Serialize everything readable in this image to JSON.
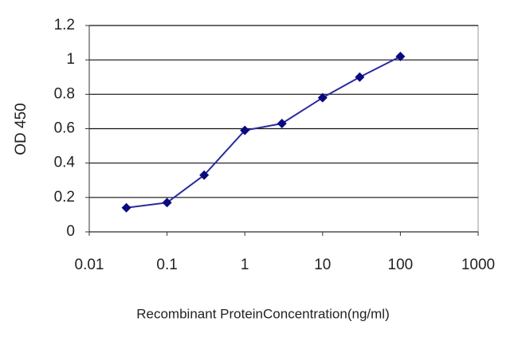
{
  "chart_data": {
    "type": "line",
    "x_label": "Recombinant ProteinConcentration(ng/ml)",
    "y_label": "OD 450",
    "x": [
      0.03,
      0.1,
      0.3,
      1,
      3,
      10,
      30,
      100
    ],
    "values": [
      0.14,
      0.17,
      0.33,
      0.59,
      0.63,
      0.78,
      0.9,
      1.02
    ],
    "color": "#2a2aa0",
    "marker_color": "#0a0a80",
    "xscale": "log",
    "xlim": [
      0.01,
      1000
    ],
    "xticks": [
      0.01,
      0.1,
      1,
      10,
      100,
      1000
    ],
    "ylim": [
      0,
      1.2
    ],
    "yticks": [
      0,
      0.2,
      0.4,
      0.6,
      0.8,
      1,
      1.2
    ],
    "grid": true
  }
}
